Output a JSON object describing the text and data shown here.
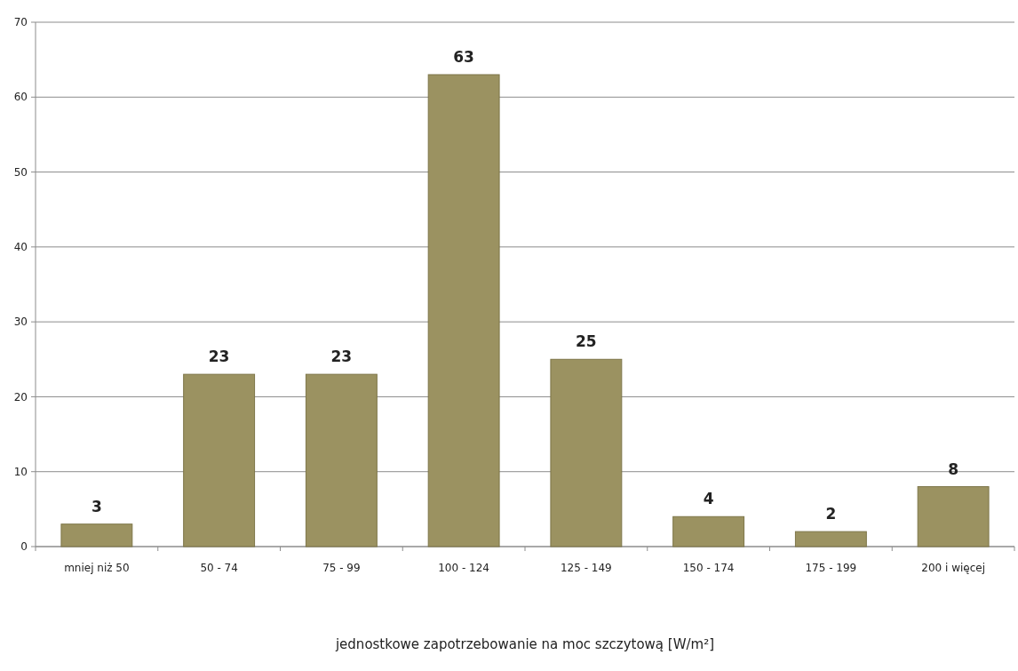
{
  "chart_data": {
    "type": "bar",
    "xlabel": "jednostkowe zapotrzebowanie na moc szczytową  [W/m²]",
    "categories": [
      "mniej niż 50",
      "50 - 74",
      "75 - 99",
      "100 - 124",
      "125 - 149",
      "150 - 174",
      "175 - 199",
      "200 i więcej"
    ],
    "values": [
      3,
      23,
      23,
      63,
      25,
      4,
      2,
      8
    ],
    "color": "#9b9261",
    "ylim": [
      0,
      70
    ],
    "yticks": [
      0,
      10,
      20,
      30,
      40,
      50,
      60,
      70
    ],
    "grid": "y",
    "data_labels": true
  }
}
